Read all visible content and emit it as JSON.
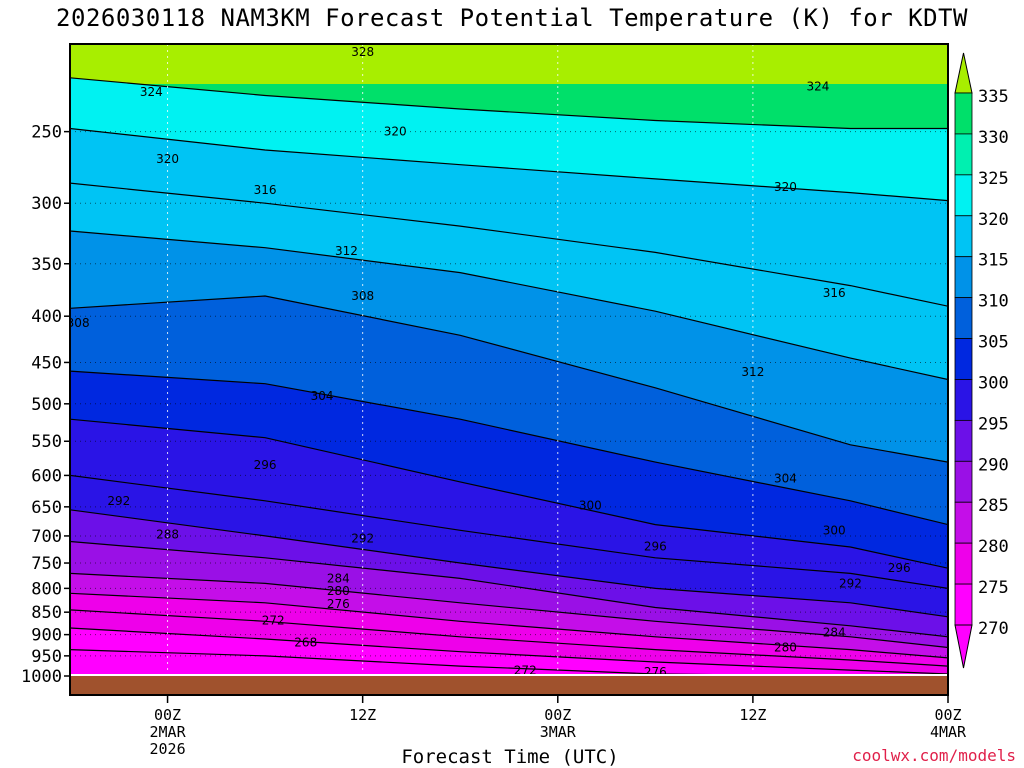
{
  "chart_data": {
    "type": "heatmap",
    "title": "2026030118 NAM3KM Forecast Potential Temperature (K) for KDTW",
    "xlabel": "Forecast Time (UTC)",
    "ylabel": "",
    "credit": "coolwx.com/models",
    "y_axis": {
      "scale": "log-pressure",
      "range_hpa": [
        1000,
        200
      ],
      "ticks": [
        "250",
        "300",
        "350",
        "400",
        "450",
        "500",
        "550",
        "600",
        "650",
        "700",
        "750",
        "800",
        "850",
        "900",
        "950",
        "1000"
      ]
    },
    "x_axis": {
      "range_hours": [
        -6,
        48
      ],
      "ticks": [
        {
          "hours": 0,
          "lines": [
            "00Z",
            "2MAR",
            "2026"
          ]
        },
        {
          "hours": 12,
          "lines": [
            "12Z"
          ]
        },
        {
          "hours": 24,
          "lines": [
            "00Z",
            "3MAR"
          ]
        },
        {
          "hours": 36,
          "lines": [
            "12Z"
          ]
        },
        {
          "hours": 48,
          "lines": [
            "00Z",
            "4MAR"
          ]
        }
      ]
    },
    "colorbar": {
      "units": "K",
      "levels": [
        "335",
        "330",
        "325",
        "320",
        "315",
        "310",
        "305",
        "300",
        "295",
        "290",
        "285",
        "280",
        "275",
        "270"
      ],
      "bands": [
        {
          "level": 335,
          "color": "#a8ee00"
        },
        {
          "level": 330,
          "color": "#00e06a"
        },
        {
          "level": 325,
          "color": "#00f0b0"
        },
        {
          "level": 320,
          "color": "#00f2f2"
        },
        {
          "level": 315,
          "color": "#00c4f4"
        },
        {
          "level": 310,
          "color": "#0092e8"
        },
        {
          "level": 305,
          "color": "#0060dc"
        },
        {
          "level": 300,
          "color": "#0028e0"
        },
        {
          "level": 295,
          "color": "#2a14e6"
        },
        {
          "level": 290,
          "color": "#6c10e8"
        },
        {
          "level": 285,
          "color": "#9a10e6"
        },
        {
          "level": 280,
          "color": "#c40ee8"
        },
        {
          "level": 275,
          "color": "#ee00ea"
        },
        {
          "level": 270,
          "color": "#ff00ff"
        }
      ]
    },
    "series": [
      {
        "name": "324",
        "values": [
          218,
          228,
          236,
          243,
          248,
          248
        ]
      },
      {
        "name": "320",
        "values": [
          248,
          262,
          272,
          282,
          292,
          298
        ]
      },
      {
        "name": "316",
        "values": [
          285,
          300,
          318,
          340,
          370,
          390
        ]
      },
      {
        "name": "312",
        "values": [
          322,
          336,
          358,
          395,
          445,
          470
        ]
      },
      {
        "name": "308",
        "values": [
          392,
          380,
          420,
          480,
          555,
          580
        ]
      },
      {
        "name": "304",
        "values": [
          460,
          475,
          520,
          580,
          640,
          680
        ]
      },
      {
        "name": "300",
        "values": [
          520,
          545,
          610,
          680,
          720,
          760
        ]
      },
      {
        "name": "296",
        "values": [
          600,
          640,
          690,
          740,
          770,
          800
        ]
      },
      {
        "name": "292",
        "values": [
          655,
          700,
          750,
          800,
          830,
          860
        ]
      },
      {
        "name": "288",
        "values": [
          710,
          740,
          780,
          840,
          880,
          905
        ]
      },
      {
        "name": "284",
        "values": [
          770,
          790,
          830,
          870,
          905,
          930
        ]
      },
      {
        "name": "280",
        "values": [
          810,
          830,
          870,
          905,
          935,
          955
        ]
      },
      {
        "name": "276",
        "values": [
          845,
          870,
          905,
          935,
          960,
          975
        ]
      },
      {
        "name": "272",
        "values": [
          885,
          910,
          940,
          965,
          985,
          995
        ]
      },
      {
        "name": "268",
        "values": [
          935,
          950,
          975,
          995,
          1000,
          1000
        ]
      }
    ],
    "series_x_hours": [
      -6,
      6,
      18,
      30,
      42,
      48
    ],
    "contour_labels": [
      {
        "text": "328",
        "hours": 12,
        "hpa": 204
      },
      {
        "text": "324",
        "hours": -1,
        "hpa": 226
      },
      {
        "text": "324",
        "hours": 40,
        "hpa": 223
      },
      {
        "text": "320",
        "hours": 14,
        "hpa": 250
      },
      {
        "text": "320",
        "hours": 0,
        "hpa": 268
      },
      {
        "text": "320",
        "hours": 38,
        "hpa": 288
      },
      {
        "text": "316",
        "hours": 6,
        "hpa": 290
      },
      {
        "text": "316",
        "hours": 41,
        "hpa": 377
      },
      {
        "text": "312",
        "hours": 11,
        "hpa": 339
      },
      {
        "text": "312",
        "hours": 36,
        "hpa": 461
      },
      {
        "text": "308",
        "hours": 12,
        "hpa": 380
      },
      {
        "text": "308",
        "hours": -5.5,
        "hpa": 407
      },
      {
        "text": "304",
        "hours": 9.5,
        "hpa": 490
      },
      {
        "text": "304",
        "hours": 38,
        "hpa": 605
      },
      {
        "text": "300",
        "hours": 26,
        "hpa": 648
      },
      {
        "text": "300",
        "hours": 41,
        "hpa": 690
      },
      {
        "text": "296",
        "hours": 6,
        "hpa": 584
      },
      {
        "text": "296",
        "hours": 30,
        "hpa": 719
      },
      {
        "text": "296",
        "hours": 45,
        "hpa": 760
      },
      {
        "text": "292",
        "hours": -3,
        "hpa": 640
      },
      {
        "text": "292",
        "hours": 12,
        "hpa": 705
      },
      {
        "text": "292",
        "hours": 42,
        "hpa": 790
      },
      {
        "text": "288",
        "hours": 0,
        "hpa": 697
      },
      {
        "text": "284",
        "hours": 10.5,
        "hpa": 780
      },
      {
        "text": "284",
        "hours": 41,
        "hpa": 895
      },
      {
        "text": "280",
        "hours": 10.5,
        "hpa": 805
      },
      {
        "text": "280",
        "hours": 38,
        "hpa": 930
      },
      {
        "text": "276",
        "hours": 10.5,
        "hpa": 833
      },
      {
        "text": "276",
        "hours": 30,
        "hpa": 990
      },
      {
        "text": "272",
        "hours": 6.5,
        "hpa": 868
      },
      {
        "text": "272",
        "hours": 22,
        "hpa": 986
      },
      {
        "text": "268",
        "hours": 8.5,
        "hpa": 918
      }
    ]
  }
}
